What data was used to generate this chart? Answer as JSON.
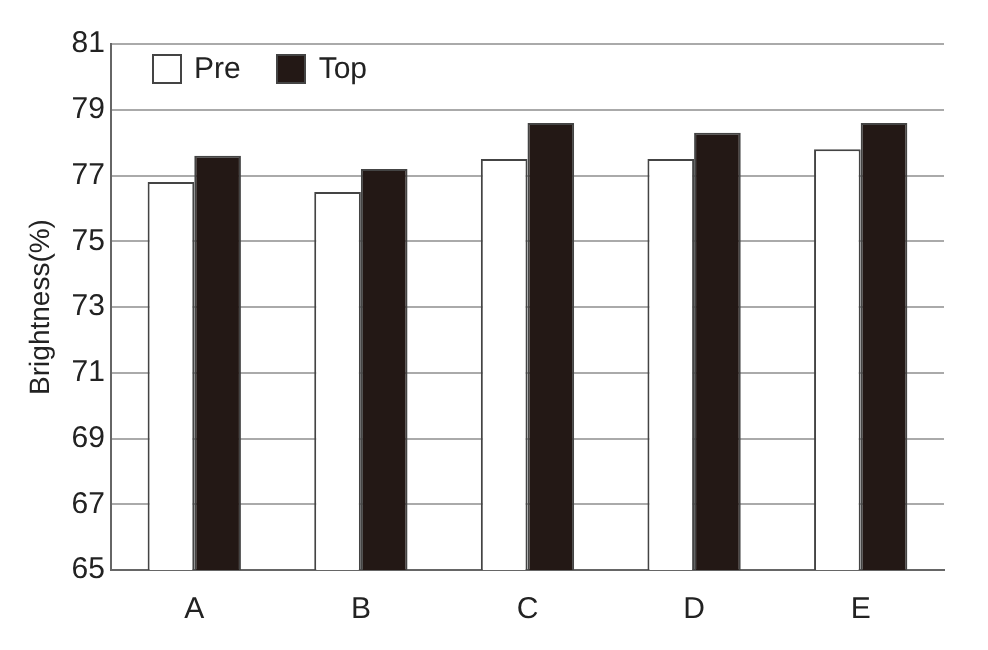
{
  "chart_data": {
    "type": "bar",
    "ylabel": "Brightness(%)",
    "categories": [
      "A",
      "B",
      "C",
      "D",
      "E"
    ],
    "series": [
      {
        "name": "Pre",
        "color": "#ffffff",
        "values": [
          76.8,
          76.5,
          77.5,
          77.5,
          77.8
        ]
      },
      {
        "name": "Top",
        "color": "#231815",
        "values": [
          77.6,
          77.2,
          78.6,
          78.3,
          78.6
        ]
      }
    ],
    "ylim": [
      65,
      81
    ],
    "yticks": [
      65,
      67,
      69,
      71,
      73,
      75,
      77,
      79,
      81
    ],
    "grid": "y",
    "legend": "top left"
  }
}
